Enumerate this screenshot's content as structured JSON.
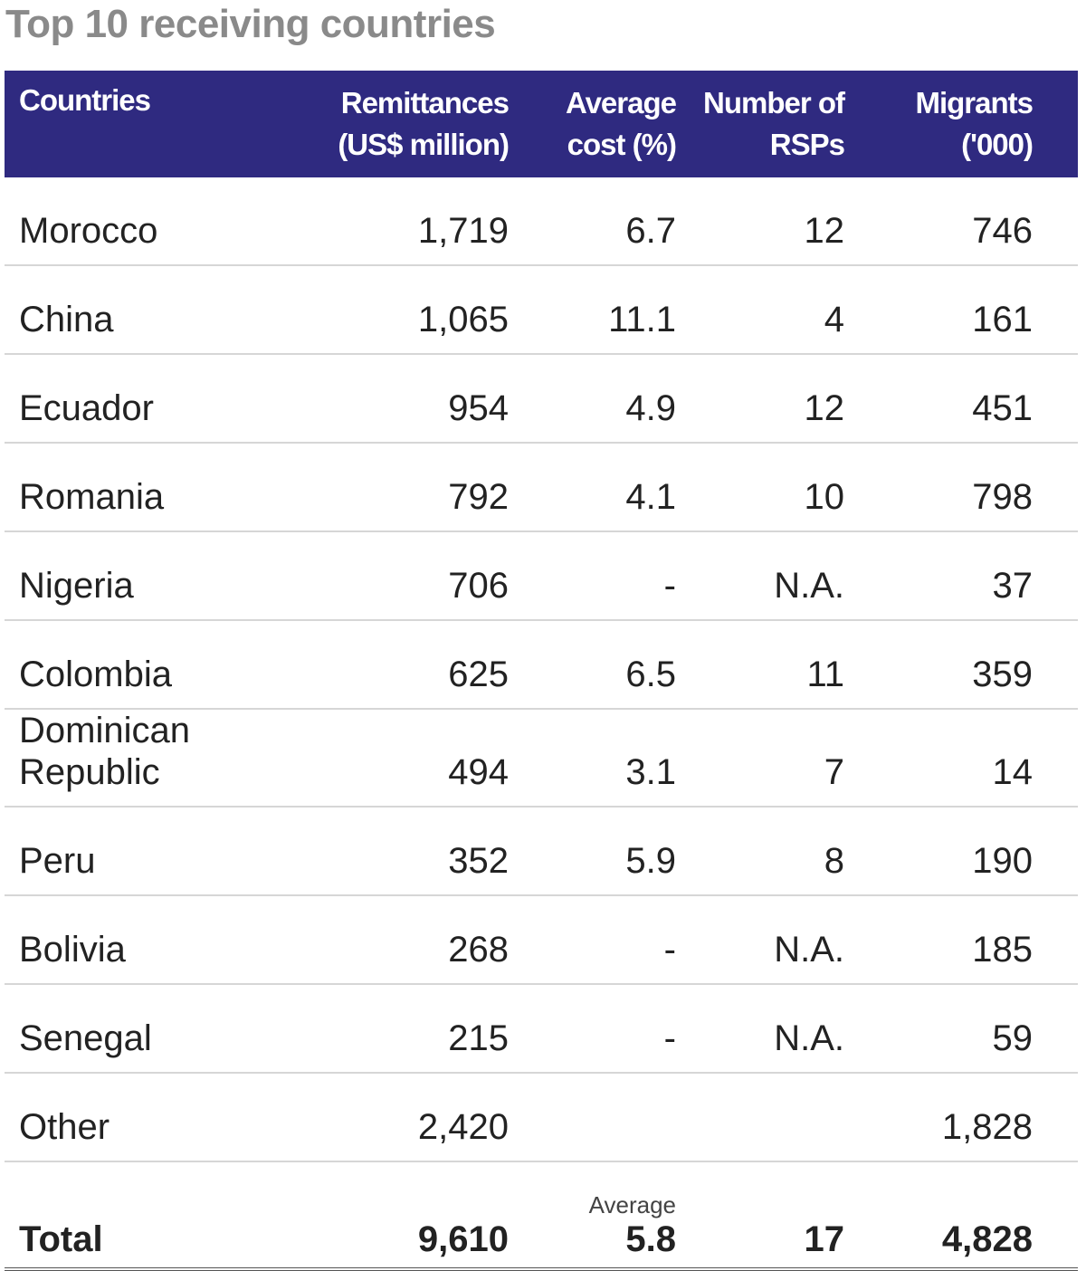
{
  "title": "Top 10 receiving countries",
  "table": {
    "header": [
      [
        "Countries"
      ],
      [
        "Remittances",
        "(US$ million)"
      ],
      [
        "Average",
        "cost (%)"
      ],
      [
        "Number of",
        "RSPs"
      ],
      [
        "Migrants",
        "('000)"
      ]
    ],
    "rows": [
      [
        "Morocco",
        "1,719",
        "6.7",
        "12",
        "746"
      ],
      [
        "China",
        "1,065",
        "11.1",
        "4",
        "161"
      ],
      [
        "Ecuador",
        "954",
        "4.9",
        "12",
        "451"
      ],
      [
        "Romania",
        "792",
        "4.1",
        "10",
        "798"
      ],
      [
        "Nigeria",
        "706",
        "-",
        "N.A.",
        "37"
      ],
      [
        "Colombia",
        "625",
        "6.5",
        "11",
        "359"
      ],
      [
        "Dominican Republic",
        "494",
        "3.1",
        "7",
        "14"
      ],
      [
        "Peru",
        "352",
        "5.9",
        "8",
        "190"
      ],
      [
        "Bolivia",
        "268",
        "-",
        "N.A.",
        "185"
      ],
      [
        "Senegal",
        "215",
        "-",
        "N.A.",
        "59"
      ],
      [
        "Other",
        "2,420",
        null,
        null,
        "1,828"
      ]
    ],
    "total": {
      "cells": [
        "Total",
        "9,610",
        "5.8",
        "17",
        "4,828"
      ],
      "cost_note": "Average"
    }
  }
}
